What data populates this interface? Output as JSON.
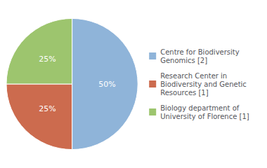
{
  "chart_data": {
    "type": "pie",
    "categories": [
      "Centre for Biodiversity\nGenomics [2]",
      "Research Center in\nBiodiversity and Genetic\nResources [1]",
      "Biology department of\nUniversity of Florence [1]"
    ],
    "values": [
      50,
      25,
      25
    ],
    "value_labels": [
      "50%",
      "25%",
      "25%"
    ],
    "colors": [
      "#8fb4d9",
      "#cc6b4e",
      "#9dc56e"
    ],
    "data_labels": true,
    "legend": "right"
  }
}
